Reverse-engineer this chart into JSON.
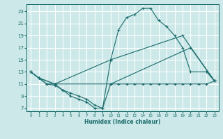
{
  "xlabel": "Humidex (Indice chaleur)",
  "bg_color": "#cce8e8",
  "line_color": "#1a6b6b",
  "grid_color": "#ffffff",
  "xlim": [
    -0.5,
    23.5
  ],
  "ylim": [
    6.5,
    24.2
  ],
  "xticks": [
    0,
    1,
    2,
    3,
    4,
    5,
    6,
    7,
    8,
    9,
    10,
    11,
    12,
    13,
    14,
    15,
    16,
    17,
    18,
    19,
    20,
    21,
    22,
    23
  ],
  "yticks": [
    7,
    9,
    11,
    13,
    15,
    17,
    19,
    21,
    23
  ],
  "series": [
    {
      "x": [
        0,
        1,
        2,
        3,
        4,
        5,
        6,
        7,
        8,
        9,
        10,
        11,
        12,
        13,
        14,
        15,
        16,
        17,
        18,
        19,
        20,
        21,
        22,
        23
      ],
      "y": [
        13,
        12,
        11,
        10.8,
        10,
        9.5,
        9,
        8.5,
        7.5,
        7,
        11,
        11,
        11,
        11,
        11,
        11,
        11,
        11,
        11,
        11,
        11,
        11,
        11,
        11.5
      ]
    },
    {
      "x": [
        0,
        1,
        2,
        3,
        4,
        5,
        6,
        7,
        8,
        9,
        10,
        11,
        12,
        13,
        14,
        15,
        16,
        17,
        18,
        19,
        20,
        22,
        23
      ],
      "y": [
        13,
        12,
        11,
        11,
        10,
        9,
        8.5,
        8,
        7,
        7,
        15,
        20,
        22,
        22.5,
        23.5,
        23.5,
        21.5,
        20.5,
        19,
        17,
        13,
        13,
        11.5
      ]
    },
    {
      "x": [
        0,
        1,
        3,
        10,
        19,
        23
      ],
      "y": [
        13,
        12,
        11,
        15,
        19,
        11.5
      ]
    },
    {
      "x": [
        0,
        1,
        3,
        10,
        20,
        23
      ],
      "y": [
        13,
        12,
        11,
        11,
        17,
        11.5
      ]
    }
  ]
}
